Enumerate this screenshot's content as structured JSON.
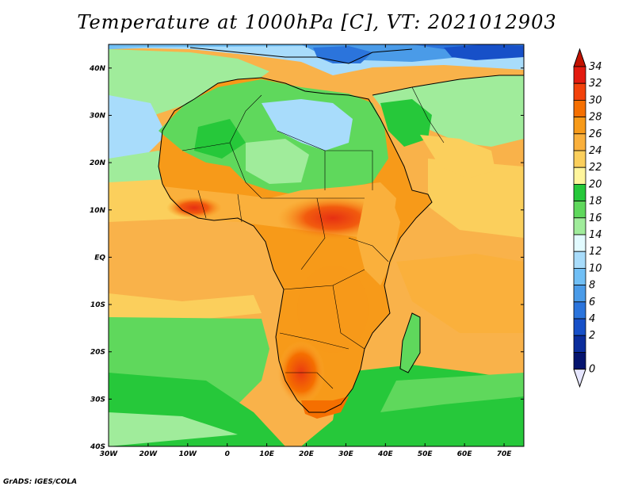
{
  "title": "Temperature at 1000hPa [C], VT: 2021012903",
  "credit": "GrADS: IGES/COLA",
  "map": {
    "lat_labels": [
      "40N",
      "30N",
      "20N",
      "10N",
      "EQ",
      "10S",
      "20S",
      "30S",
      "40S"
    ],
    "lon_labels": [
      "30W",
      "20W",
      "10W",
      "0",
      "10E",
      "20E",
      "30E",
      "40E",
      "50E",
      "60E",
      "70E"
    ],
    "extent": {
      "lon_min": -30,
      "lon_max": 75,
      "lat_min": -40,
      "lat_max": 45
    }
  },
  "colorbar": {
    "labels": [
      "34",
      "32",
      "30",
      "28",
      "26",
      "24",
      "22",
      "20",
      "18",
      "16",
      "14",
      "12",
      "10",
      "8",
      "6",
      "4",
      "2",
      "0"
    ],
    "colors": [
      "#e31a0f",
      "#f2420b",
      "#f56f00",
      "#f79a19",
      "#fab03c",
      "#fbcf5c",
      "#fff59c",
      "#26c83a",
      "#5fd85c",
      "#a0ec9b",
      "#e2fbff",
      "#a8dcfb",
      "#70bff5",
      "#4a9be8",
      "#2b74dc",
      "#1750c8",
      "#0b2d9c",
      "#05146e"
    ],
    "over_color": "#c21200",
    "under_color": "#e6e6ff"
  }
}
